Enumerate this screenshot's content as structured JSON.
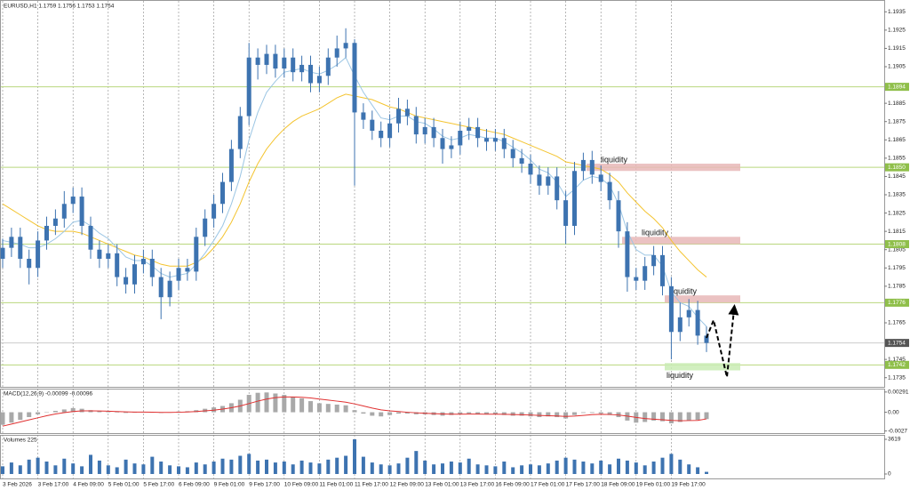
{
  "chart_data": [
    {
      "type": "candlestick",
      "title": "EURUSD,H1  1.1759 1.1756 1.1753 1.1754",
      "xticks": [
        "3 Feb 2026",
        "3 Feb 17:00",
        "4 Feb 09:00",
        "5 Feb 01:00",
        "5 Feb 17:00",
        "6 Feb 09:00",
        "9 Feb 01:00",
        "9 Feb 17:00",
        "10 Feb 09:00",
        "11 Feb 01:00",
        "11 Feb 17:00",
        "12 Feb 09:00",
        "13 Feb 01:00",
        "13 Feb 17:00",
        "16 Feb 09:00",
        "17 Feb 01:00",
        "17 Feb 17:00",
        "18 Feb 09:00",
        "19 Feb 01:00",
        "19 Feb 17:00"
      ],
      "candle_color": "#3d73b0",
      "open": [
        1.18,
        1.1806,
        1.1812,
        1.18,
        1.1795,
        1.181,
        1.1818,
        1.1822,
        1.183,
        1.1834,
        1.1818,
        1.1805,
        1.18,
        1.1803,
        1.179,
        1.1786,
        1.1797,
        1.18,
        1.179,
        1.1779,
        1.1788,
        1.1795,
        1.1793,
        1.1812,
        1.1822,
        1.183,
        1.1842,
        1.186,
        1.1878,
        1.191,
        1.1906,
        1.1912,
        1.1904,
        1.191,
        1.1902,
        1.1906,
        1.1896,
        1.19,
        1.191,
        1.1915,
        1.1918,
        1.188,
        1.1876,
        1.187,
        1.1866,
        1.1874,
        1.1882,
        1.1878,
        1.1868,
        1.1872,
        1.1866,
        1.186,
        1.1862,
        1.187,
        1.1872,
        1.1866,
        1.1864,
        1.1866,
        1.186,
        1.1855,
        1.1852,
        1.1846,
        1.184,
        1.1845,
        1.1832,
        1.1818,
        1.1848,
        1.1854,
        1.1846,
        1.1842,
        1.1832,
        1.1815,
        1.179,
        1.1788,
        1.1796,
        1.1802,
        1.1785,
        1.176,
        1.1768,
        1.1772,
        1.1758
      ],
      "high": [
        1.1811,
        1.1817,
        1.1817,
        1.1805,
        1.1815,
        1.1823,
        1.1827,
        1.1837,
        1.1839,
        1.1839,
        1.1823,
        1.181,
        1.1808,
        1.1808,
        1.1795,
        1.1802,
        1.1805,
        1.1805,
        1.1795,
        1.1793,
        1.18,
        1.18,
        1.1817,
        1.1827,
        1.1835,
        1.1847,
        1.1865,
        1.1883,
        1.1918,
        1.1915,
        1.1917,
        1.1917,
        1.1915,
        1.1915,
        1.1911,
        1.1911,
        1.1905,
        1.1915,
        1.1922,
        1.1926,
        1.192,
        1.1885,
        1.1881,
        1.1875,
        1.1879,
        1.1888,
        1.1887,
        1.1883,
        1.1877,
        1.1877,
        1.1871,
        1.1867,
        1.1875,
        1.1877,
        1.1877,
        1.1871,
        1.1871,
        1.1871,
        1.1865,
        1.186,
        1.1857,
        1.1851,
        1.185,
        1.185,
        1.1837,
        1.1853,
        1.1858,
        1.1859,
        1.1851,
        1.1847,
        1.1837,
        1.182,
        1.1795,
        1.1801,
        1.1807,
        1.1807,
        1.179,
        1.1776,
        1.1778,
        1.1777,
        1.1763
      ],
      "low": [
        1.1795,
        1.1801,
        1.1795,
        1.1786,
        1.179,
        1.1805,
        1.1813,
        1.1817,
        1.1825,
        1.1813,
        1.18,
        1.1795,
        1.1795,
        1.1785,
        1.1781,
        1.1781,
        1.1792,
        1.1785,
        1.1767,
        1.1774,
        1.1783,
        1.1788,
        1.1788,
        1.1807,
        1.1817,
        1.1825,
        1.1837,
        1.1855,
        1.1873,
        1.1898,
        1.1901,
        1.1899,
        1.1899,
        1.1897,
        1.1897,
        1.1891,
        1.1891,
        1.1895,
        1.1905,
        1.191,
        1.184,
        1.1871,
        1.1865,
        1.1861,
        1.1861,
        1.1869,
        1.1873,
        1.1863,
        1.1863,
        1.1861,
        1.1852,
        1.1855,
        1.1857,
        1.1865,
        1.1861,
        1.1859,
        1.1859,
        1.1855,
        1.185,
        1.1847,
        1.1841,
        1.1835,
        1.1835,
        1.1827,
        1.1808,
        1.1813,
        1.1843,
        1.1841,
        1.1837,
        1.1827,
        1.1806,
        1.1782,
        1.1783,
        1.1783,
        1.1791,
        1.178,
        1.1745,
        1.1755,
        1.1763,
        1.1753,
        1.1749
      ],
      "close": [
        1.1806,
        1.1812,
        1.18,
        1.1795,
        1.181,
        1.1818,
        1.1822,
        1.183,
        1.1834,
        1.1818,
        1.1805,
        1.18,
        1.1803,
        1.179,
        1.1786,
        1.1797,
        1.18,
        1.179,
        1.1779,
        1.1788,
        1.1795,
        1.1793,
        1.1812,
        1.1822,
        1.183,
        1.1842,
        1.186,
        1.1878,
        1.191,
        1.1906,
        1.1912,
        1.1904,
        1.191,
        1.1902,
        1.1906,
        1.1896,
        1.19,
        1.191,
        1.1915,
        1.1918,
        1.188,
        1.1876,
        1.187,
        1.1866,
        1.1874,
        1.1882,
        1.1878,
        1.1868,
        1.1872,
        1.1866,
        1.186,
        1.1862,
        1.187,
        1.1872,
        1.1866,
        1.1864,
        1.1866,
        1.186,
        1.1855,
        1.1852,
        1.1846,
        1.184,
        1.1845,
        1.1832,
        1.1818,
        1.1848,
        1.1854,
        1.1846,
        1.1842,
        1.1832,
        1.1815,
        1.179,
        1.1788,
        1.1796,
        1.1802,
        1.1785,
        1.176,
        1.1768,
        1.1772,
        1.1758,
        1.1754
      ],
      "lines": [
        {
          "color": "#f4c430",
          "values": [
            1.183,
            1.1827,
            1.1824,
            1.1821,
            1.1818,
            1.1816,
            1.1815,
            1.1815,
            1.1815,
            1.1814,
            1.1812,
            1.181,
            1.1808,
            1.1806,
            1.1804,
            1.1802,
            1.1801,
            1.1799,
            1.1797,
            1.1796,
            1.1796,
            1.1796,
            1.1798,
            1.1801,
            1.1806,
            1.1812,
            1.182,
            1.183,
            1.1842,
            1.1852,
            1.186,
            1.1866,
            1.1871,
            1.1875,
            1.1878,
            1.188,
            1.1882,
            1.1885,
            1.1888,
            1.189,
            1.1889,
            1.1888,
            1.1887,
            1.1885,
            1.1883,
            1.1882,
            1.188,
            1.1878,
            1.1877,
            1.1876,
            1.1875,
            1.1874,
            1.1873,
            1.1872,
            1.1871,
            1.187,
            1.1869,
            1.1868,
            1.1866,
            1.1864,
            1.1862,
            1.186,
            1.1858,
            1.1856,
            1.1853,
            1.1852,
            1.1851,
            1.185,
            1.1849,
            1.1846,
            1.1842,
            1.1836,
            1.1831,
            1.1826,
            1.1822,
            1.1817,
            1.181,
            1.1804,
            1.1799,
            1.1794,
            1.179
          ]
        },
        {
          "color": "#9cc6e4",
          "values": [
            1.181,
            1.1809,
            1.1808,
            1.1806,
            1.1806,
            1.1808,
            1.1811,
            1.1815,
            1.182,
            1.1821,
            1.1818,
            1.1814,
            1.1811,
            1.1806,
            1.1801,
            1.1799,
            1.1799,
            1.1796,
            1.1792,
            1.179,
            1.1791,
            1.1792,
            1.1797,
            1.1803,
            1.181,
            1.1818,
            1.183,
            1.1845,
            1.1865,
            1.188,
            1.1891,
            1.1897,
            1.1902,
            1.1903,
            1.1904,
            1.1902,
            1.1901,
            1.1903,
            1.1906,
            1.191,
            1.19,
            1.1891,
            1.1884,
            1.1877,
            1.1876,
            1.1878,
            1.1878,
            1.1875,
            1.1874,
            1.1871,
            1.1867,
            1.1865,
            1.1866,
            1.1868,
            1.1867,
            1.1866,
            1.1866,
            1.1864,
            1.1861,
            1.1858,
            1.1854,
            1.1849,
            1.1847,
            1.1842,
            1.1834,
            1.1838,
            1.1843,
            1.1845,
            1.1844,
            1.184,
            1.183,
            1.1815,
            1.1805,
            1.1802,
            1.1802,
            1.1796,
            1.1782,
            1.1776,
            1.1774,
            1.1768,
            1.1763
          ]
        }
      ],
      "ylim": [
        1.173,
        1.194
      ],
      "yticks": [
        1.1935,
        1.1925,
        1.1915,
        1.1905,
        1.1885,
        1.1875,
        1.1865,
        1.1855,
        1.1845,
        1.1835,
        1.1825,
        1.1815,
        1.1805,
        1.1795,
        1.1785,
        1.1765,
        1.1745,
        1.1735
      ],
      "levels": [
        1.1894,
        {
          "value": 1.185,
          "label": "1.1850"
        },
        1.1808,
        1.1776,
        1.1742
      ],
      "level_color": "#b9d77e",
      "current": 1.1754,
      "annotations": [
        {
          "text": "liquidity",
          "y0": 1.1848,
          "y1": 1.1852,
          "color": "#e8b7b7"
        },
        {
          "text": "liquidity",
          "y0": 1.1808,
          "y1": 1.1812,
          "color": "#e8b7b7"
        },
        {
          "text": "liquidity",
          "y0": 1.1776,
          "y1": 1.178,
          "color": "#e8b7b7"
        },
        {
          "text": "liquidity",
          "y0": 1.1739,
          "y1": 1.1743,
          "color": "#c9ecb4"
        }
      ]
    },
    {
      "type": "macd",
      "title": "MACD(12,26,9) -0.00099 -0.00096",
      "color": "#a9a9a9",
      "signal_color": "#e03030",
      "values": [
        -0.0018,
        -0.0015,
        -0.0011,
        -0.0007,
        -0.0003,
        0.0,
        0.0002,
        0.0004,
        0.0006,
        0.0005,
        0.0003,
        0.00015,
        0.0001,
        0.0,
        -0.0001,
        0.0,
        5e-05,
        0.0,
        -0.0001,
        0.0,
        0.0001,
        0.00015,
        0.0003,
        0.0005,
        0.0007,
        0.0009,
        0.0013,
        0.0018,
        0.0025,
        0.0028,
        0.00285,
        0.0027,
        0.0025,
        0.0022,
        0.002,
        0.0016,
        0.0013,
        0.0012,
        0.0011,
        0.001,
        0.0003,
        -0.0002,
        -0.0005,
        -0.0006,
        -0.0004,
        -0.0002,
        -0.0002,
        -0.0003,
        -0.0003,
        -0.0004,
        -0.0005,
        -0.0004,
        -0.0003,
        -0.0002,
        -0.0003,
        -0.0003,
        -0.0003,
        -0.0004,
        -0.0005,
        -0.0005,
        -0.0006,
        -0.0007,
        -0.0006,
        -0.0007,
        -0.0009,
        -0.0004,
        -0.0001,
        -0.0001,
        -0.0002,
        -0.0004,
        -0.0007,
        -0.0012,
        -0.0015,
        -0.0014,
        -0.0012,
        -0.0013,
        -0.0016,
        -0.0014,
        -0.0012,
        -0.0011,
        -0.00099
      ],
      "signal": [
        -0.002,
        -0.0017,
        -0.0014,
        -0.0011,
        -0.0008,
        -0.0005,
        -0.00025,
        -5e-05,
        0.0001,
        0.0002,
        0.0002,
        0.00018,
        0.00015,
        0.0001,
        5e-05,
        2e-05,
        2e-05,
        1e-05,
        -2e-05,
        -2e-05,
        0.0,
        4e-05,
        0.0001,
        0.0002,
        0.0003,
        0.00045,
        0.00065,
        0.0009,
        0.00125,
        0.0016,
        0.0019,
        0.0021,
        0.0022,
        0.0022,
        0.00215,
        0.00205,
        0.0019,
        0.00175,
        0.0016,
        0.00145,
        0.0012,
        0.0009,
        0.0006,
        0.00035,
        0.0002,
        0.0001,
        0.0,
        -8e-05,
        -0.00015,
        -0.0002,
        -0.00025,
        -0.00028,
        -0.00028,
        -0.00027,
        -0.00027,
        -0.00028,
        -0.00028,
        -0.0003,
        -0.00033,
        -0.00036,
        -0.0004,
        -0.00045,
        -0.0005,
        -0.00053,
        -0.0006,
        -0.00055,
        -0.00045,
        -0.00035,
        -0.0003,
        -0.00032,
        -0.0004,
        -0.00055,
        -0.00075,
        -0.0009,
        -0.001,
        -0.00108,
        -0.00118,
        -0.00122,
        -0.0012,
        -0.00118,
        -0.00096
      ],
      "ylim": [
        -0.003,
        0.0034
      ],
      "yticks": [
        0.00291,
        {
          "value": 0,
          "label": "0.00"
        },
        -0.0027
      ]
    },
    {
      "type": "volume",
      "title": "Volumes 225",
      "color": "#3d73b0",
      "values": [
        800,
        1200,
        900,
        1500,
        1700,
        1300,
        900,
        1600,
        1100,
        800,
        2000,
        1400,
        900,
        700,
        1500,
        1100,
        1000,
        1800,
        1300,
        900,
        800,
        700,
        1200,
        1000,
        1300,
        1600,
        1500,
        1900,
        2100,
        1400,
        1500,
        1200,
        1300,
        1000,
        1400,
        1200,
        1100,
        1500,
        1700,
        1900,
        3619,
        1800,
        1200,
        1000,
        900,
        1100,
        1700,
        2400,
        1400,
        1000,
        1100,
        1300,
        1200,
        1600,
        1000,
        900,
        800,
        1300,
        700,
        900,
        1000,
        900,
        1100,
        1400,
        1700,
        1500,
        1300,
        1100,
        1400,
        1000,
        1600,
        1400,
        1200,
        900,
        1300,
        1700,
        2100,
        1500,
        1000,
        700,
        225
      ],
      "ylim": [
        0,
        3619
      ],
      "yticks": [
        3619,
        0
      ]
    }
  ]
}
